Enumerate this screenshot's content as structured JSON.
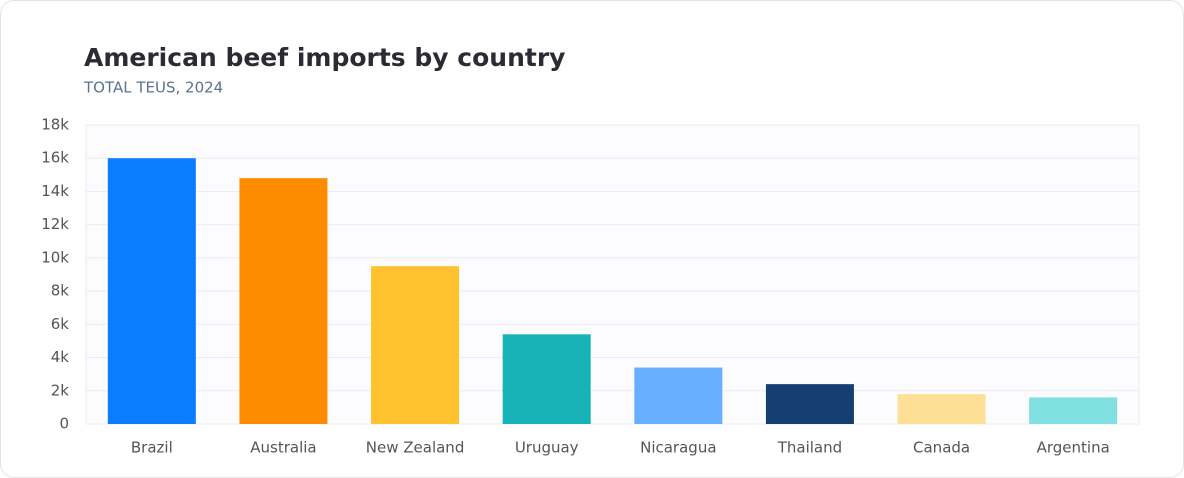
{
  "chart_data": {
    "type": "bar",
    "title": "American beef imports by country",
    "subtitle": "TOTAL TEUS, 2024",
    "categories": [
      "Brazil",
      "Australia",
      "New Zealand",
      "Uruguay",
      "Nicaragua",
      "Thailand",
      "Canada",
      "Argentina"
    ],
    "values": [
      16000,
      14800,
      9500,
      5400,
      3400,
      2400,
      1800,
      1600
    ],
    "colors": [
      "#0a7cff",
      "#ff8c00",
      "#ffc12e",
      "#17b3b7",
      "#66b0ff",
      "#153f70",
      "#fde096",
      "#7fdfe1"
    ],
    "ylim": [
      0,
      18000
    ],
    "yticks": [
      0,
      {
        "value": 2000,
        "label": "2k"
      },
      {
        "value": 4000,
        "label": "4k"
      },
      {
        "value": 6000,
        "label": "6k"
      },
      {
        "value": 8000,
        "label": "8k"
      },
      {
        "value": 10000,
        "label": "10k"
      },
      {
        "value": 12000,
        "label": "12k"
      },
      {
        "value": 14000,
        "label": "14k"
      },
      {
        "value": 16000,
        "label": "16k"
      },
      {
        "value": 18000,
        "label": "18k"
      }
    ],
    "grid": true
  }
}
